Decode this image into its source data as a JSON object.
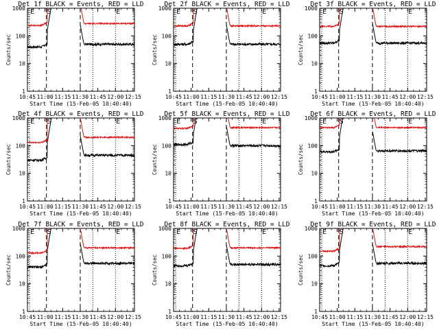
{
  "page": {
    "background": "#ffffff"
  },
  "colors": {
    "events": "#000000",
    "lld": "#dd1111",
    "axis": "#000000"
  },
  "chart_data": [
    {
      "type": "line",
      "title": "Det 1f BLACK = Events, RED = LLD",
      "xlabel": "Start Time (15-Feb-05 10:40:40)",
      "ylabel": "Counts/sec",
      "yscale": "log",
      "ylim": [
        1,
        1000
      ],
      "xlim": [
        10.75,
        12.27
      ],
      "xticks": [
        "10:45",
        "11:00",
        "11:15",
        "11:30",
        "11:45",
        "12:00",
        "12:15"
      ],
      "yticks": [
        "1",
        "10",
        "100",
        "1000"
      ],
      "markers": [
        {
          "label": "E",
          "x": 10.78,
          "style": "dotted"
        },
        {
          "label": "S",
          "x": 11.02,
          "style": "dashed"
        },
        {
          "label": "E",
          "x": 12.0,
          "style": "dotted"
        }
      ],
      "gap": [
        11.1,
        11.5
      ],
      "series": [
        {
          "name": "Events",
          "base": 50,
          "pre": 40,
          "rise": 150
        },
        {
          "name": "LLD",
          "base": 280,
          "pre": 240,
          "rise": 1000
        }
      ]
    },
    {
      "type": "line",
      "title": "Det 2f BLACK = Events, RED = LLD",
      "xlabel": "Start Time (15-Feb-05 10:40:40)",
      "ylabel": "Counts/sec",
      "yscale": "log",
      "ylim": [
        1,
        1000
      ],
      "xlim": [
        10.75,
        12.27
      ],
      "xticks": [
        "10:45",
        "11:00",
        "11:15",
        "11:30",
        "11:45",
        "12:00",
        "12:15"
      ],
      "yticks": [
        "1",
        "10",
        "100",
        "1000"
      ],
      "markers": [
        {
          "label": "E",
          "x": 10.78,
          "style": "dotted"
        },
        {
          "label": "S",
          "x": 11.02,
          "style": "dashed"
        },
        {
          "label": "E",
          "x": 12.0,
          "style": "dotted"
        }
      ],
      "gap": [
        11.1,
        11.5
      ],
      "series": [
        {
          "name": "Events",
          "base": 50,
          "pre": 50,
          "rise": 150
        },
        {
          "name": "LLD",
          "base": 230,
          "pre": 230,
          "rise": 800
        }
      ]
    },
    {
      "type": "line",
      "title": "Det 3f BLACK = Events, RED = LLD",
      "xlabel": "Start Time (15-Feb-05 10:40:40)",
      "ylabel": "Counts/sec",
      "yscale": "log",
      "ylim": [
        1,
        1000
      ],
      "xlim": [
        10.75,
        12.27
      ],
      "xticks": [
        "10:45",
        "11:00",
        "11:15",
        "11:30",
        "11:45",
        "12:00",
        "12:15"
      ],
      "yticks": [
        "1",
        "10",
        "100",
        "1000"
      ],
      "markers": [
        {
          "label": "E",
          "x": 10.78,
          "style": "dotted"
        },
        {
          "label": "S",
          "x": 11.02,
          "style": "dashed"
        },
        {
          "label": "E",
          "x": 12.0,
          "style": "dotted"
        }
      ],
      "gap": [
        11.1,
        11.5
      ],
      "series": [
        {
          "name": "Events",
          "base": 55,
          "pre": 55,
          "rise": 150
        },
        {
          "name": "LLD",
          "base": 220,
          "pre": 220,
          "rise": 900
        }
      ]
    },
    {
      "type": "line",
      "title": "Det 4f BLACK = Events, RED = LLD",
      "xlabel": "Start Time (15-Feb-05 10:40:40)",
      "ylabel": "Counts/sec",
      "yscale": "log",
      "ylim": [
        1,
        1000
      ],
      "xlim": [
        10.75,
        12.27
      ],
      "xticks": [
        "10:45",
        "11:00",
        "11:15",
        "11:30",
        "11:45",
        "12:00",
        "12:15"
      ],
      "yticks": [
        "1",
        "10",
        "100",
        "1000"
      ],
      "markers": [
        {
          "label": "E",
          "x": 10.78,
          "style": "dotted"
        },
        {
          "label": "S",
          "x": 11.02,
          "style": "dashed"
        },
        {
          "label": "E",
          "x": 12.0,
          "style": "dotted"
        }
      ],
      "gap": [
        11.1,
        11.5
      ],
      "series": [
        {
          "name": "Events",
          "base": 45,
          "pre": 30,
          "rise": 120
        },
        {
          "name": "LLD",
          "base": 200,
          "pre": 130,
          "rise": 1000
        }
      ]
    },
    {
      "type": "line",
      "title": "Det 5f BLACK = Events, RED = LLD",
      "xlabel": "Start Time (15-Feb-05 10:40:40)",
      "ylabel": "Counts/sec",
      "yscale": "log",
      "ylim": [
        1,
        1000
      ],
      "xlim": [
        10.75,
        12.27
      ],
      "xticks": [
        "10:45",
        "11:00",
        "11:15",
        "11:30",
        "11:45",
        "12:00",
        "12:15"
      ],
      "yticks": [
        "1",
        "10",
        "100",
        "1000"
      ],
      "markers": [
        {
          "label": "E",
          "x": 10.78,
          "style": "dotted"
        },
        {
          "label": "S",
          "x": 11.02,
          "style": "dashed"
        },
        {
          "label": "E",
          "x": 12.0,
          "style": "dotted"
        }
      ],
      "gap": [
        11.1,
        11.5
      ],
      "series": [
        {
          "name": "Events",
          "base": 100,
          "pre": 110,
          "rise": 250
        },
        {
          "name": "LLD",
          "base": 450,
          "pre": 420,
          "rise": 1000
        }
      ]
    },
    {
      "type": "line",
      "title": "Det 6f BLACK = Events, RED = LLD",
      "xlabel": "Start Time (15-Feb-05 10:40:40)",
      "ylabel": "Counts/sec",
      "yscale": "log",
      "ylim": [
        1,
        1000
      ],
      "xlim": [
        10.75,
        12.27
      ],
      "xticks": [
        "10:45",
        "11:00",
        "11:15",
        "11:30",
        "11:45",
        "12:00",
        "12:15"
      ],
      "yticks": [
        "1",
        "10",
        "100",
        "1000"
      ],
      "markers": [
        {
          "label": "E",
          "x": 10.78,
          "style": "dotted"
        },
        {
          "label": "S",
          "x": 11.02,
          "style": "dashed"
        },
        {
          "label": "E",
          "x": 12.0,
          "style": "dotted"
        }
      ],
      "gap": [
        11.1,
        11.5
      ],
      "series": [
        {
          "name": "Events",
          "base": 65,
          "pre": 60,
          "rise": 200
        },
        {
          "name": "LLD",
          "base": 450,
          "pre": 450,
          "rise": 1000
        }
      ]
    },
    {
      "type": "line",
      "title": "Det 7f BLACK = Events, RED = LLD",
      "xlabel": "Start Time (15-Feb-05 10:40:40)",
      "ylabel": "Counts/sec",
      "yscale": "log",
      "ylim": [
        1,
        1000
      ],
      "xlim": [
        10.75,
        12.27
      ],
      "xticks": [
        "10:45",
        "11:00",
        "11:15",
        "11:30",
        "11:45",
        "12:00",
        "12:15"
      ],
      "yticks": [
        "1",
        "10",
        "100",
        "1000"
      ],
      "markers": [
        {
          "label": "E",
          "x": 10.78,
          "style": "dotted"
        },
        {
          "label": "S",
          "x": 11.02,
          "style": "dashed"
        },
        {
          "label": "E",
          "x": 12.0,
          "style": "dotted"
        }
      ],
      "gap": [
        11.1,
        11.5
      ],
      "series": [
        {
          "name": "Events",
          "base": 55,
          "pre": 40,
          "rise": 150
        },
        {
          "name": "LLD",
          "base": 200,
          "pre": 130,
          "rise": 1000
        }
      ]
    },
    {
      "type": "line",
      "title": "Det 8f BLACK = Events, RED = LLD",
      "xlabel": "Start Time (15-Feb-05 10:40:40)",
      "ylabel": "Counts/sec",
      "yscale": "log",
      "ylim": [
        1,
        1000
      ],
      "xlim": [
        10.75,
        12.27
      ],
      "xticks": [
        "10:45",
        "11:00",
        "11:15",
        "11:30",
        "11:45",
        "12:00",
        "12:15"
      ],
      "yticks": [
        "1",
        "10",
        "100",
        "1000"
      ],
      "markers": [
        {
          "label": "E",
          "x": 10.78,
          "style": "dotted"
        },
        {
          "label": "S",
          "x": 11.02,
          "style": "dashed"
        },
        {
          "label": "E",
          "x": 12.0,
          "style": "dotted"
        }
      ],
      "gap": [
        11.1,
        11.5
      ],
      "series": [
        {
          "name": "Events",
          "base": 50,
          "pre": 45,
          "rise": 150
        },
        {
          "name": "LLD",
          "base": 200,
          "pre": 190,
          "rise": 1000
        }
      ]
    },
    {
      "type": "line",
      "title": "Det 9f BLACK = Events, RED = LLD",
      "xlabel": "Start Time (15-Feb-05 10:40:40)",
      "ylabel": "Counts/sec",
      "yscale": "log",
      "ylim": [
        1,
        1000
      ],
      "xlim": [
        10.75,
        12.27
      ],
      "xticks": [
        "10:45",
        "11:00",
        "11:15",
        "11:30",
        "11:45",
        "12:00",
        "12:15"
      ],
      "yticks": [
        "1",
        "10",
        "100",
        "1000"
      ],
      "markers": [
        {
          "label": "E",
          "x": 10.78,
          "style": "dotted"
        },
        {
          "label": "S",
          "x": 11.02,
          "style": "dashed"
        },
        {
          "label": "E",
          "x": 12.0,
          "style": "dotted"
        }
      ],
      "gap": [
        11.1,
        11.5
      ],
      "series": [
        {
          "name": "Events",
          "base": 55,
          "pre": 45,
          "rise": 150
        },
        {
          "name": "LLD",
          "base": 220,
          "pre": 150,
          "rise": 1000
        }
      ]
    }
  ]
}
